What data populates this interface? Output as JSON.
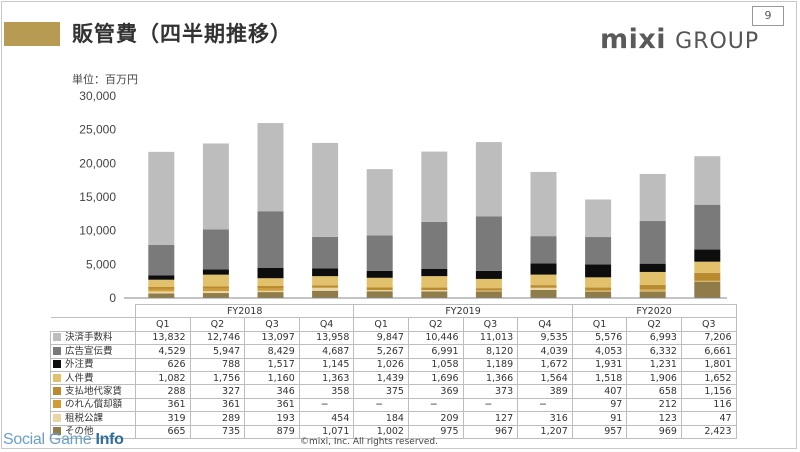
{
  "header": {
    "title": "販管費（四半期推移）",
    "logo_main": "mixi",
    "logo_sub": "GROUP",
    "page_number": "9",
    "unit_label": "単位：百万円"
  },
  "footer": {
    "copyright": "©mixi, Inc. All rights reserved.",
    "watermark_main": "Social Game ",
    "watermark_bold": "Info"
  },
  "chart_data": {
    "type": "bar",
    "stacked": true,
    "years": [
      {
        "label": "FY2018",
        "quarters": [
          "Q1",
          "Q2",
          "Q3",
          "Q4"
        ]
      },
      {
        "label": "FY2019",
        "quarters": [
          "Q1",
          "Q2",
          "Q3",
          "Q4"
        ]
      },
      {
        "label": "FY2020",
        "quarters": [
          "Q1",
          "Q2",
          "Q3"
        ]
      }
    ],
    "categories": [
      "FY2018 Q1",
      "FY2018 Q2",
      "FY2018 Q3",
      "FY2018 Q4",
      "FY2019 Q1",
      "FY2019 Q2",
      "FY2019 Q3",
      "FY2019 Q4",
      "FY2020 Q1",
      "FY2020 Q2",
      "FY2020 Q3"
    ],
    "ylim": [
      0,
      30000
    ],
    "yticks": [
      "0",
      "5,000",
      "10,000",
      "15,000",
      "20,000",
      "25,000",
      "30,000"
    ],
    "ytick_values": [
      0,
      5000,
      10000,
      15000,
      20000,
      25000,
      30000
    ],
    "series": [
      {
        "name": "決済手数料",
        "color": "#bdbdbd",
        "display": [
          "13,832",
          "12,746",
          "13,097",
          "13,958",
          "9,847",
          "10,446",
          "11,013",
          "9,535",
          "5,576",
          "6,993",
          "7,206"
        ],
        "values": [
          13832,
          12746,
          13097,
          13958,
          9847,
          10446,
          11013,
          9535,
          5576,
          6993,
          7206
        ]
      },
      {
        "name": "広告宣伝費",
        "color": "#7a7a7a",
        "display": [
          "4,529",
          "5,947",
          "8,429",
          "4,687",
          "5,267",
          "6,991",
          "8,120",
          "4,039",
          "4,053",
          "6,332",
          "6,661"
        ],
        "values": [
          4529,
          5947,
          8429,
          4687,
          5267,
          6991,
          8120,
          4039,
          4053,
          6332,
          6661
        ]
      },
      {
        "name": "外注費",
        "color": "#0d0d0d",
        "display": [
          "626",
          "788",
          "1,517",
          "1,145",
          "1,026",
          "1,058",
          "1,189",
          "1,672",
          "1,931",
          "1,231",
          "1,801"
        ],
        "values": [
          626,
          788,
          1517,
          1145,
          1026,
          1058,
          1189,
          1672,
          1931,
          1231,
          1801
        ]
      },
      {
        "name": "人件費",
        "color": "#e2c16d",
        "display": [
          "1,082",
          "1,756",
          "1,160",
          "1,363",
          "1,439",
          "1,696",
          "1,366",
          "1,564",
          "1,518",
          "1,906",
          "1,652"
        ],
        "values": [
          1082,
          1756,
          1160,
          1363,
          1439,
          1696,
          1366,
          1564,
          1518,
          1906,
          1652
        ]
      },
      {
        "name": "支払地代家賃",
        "color": "#b98a2e",
        "display": [
          "288",
          "327",
          "346",
          "358",
          "375",
          "369",
          "373",
          "389",
          "407",
          "658",
          "1,156"
        ],
        "values": [
          288,
          327,
          346,
          358,
          375,
          369,
          373,
          389,
          407,
          658,
          1156
        ]
      },
      {
        "name": "のれん償却額",
        "color": "#d09c36",
        "display": [
          "361",
          "361",
          "361",
          "−",
          "−",
          "−",
          "−",
          "−",
          "97",
          "212",
          "116"
        ],
        "values": [
          361,
          361,
          361,
          0,
          0,
          0,
          0,
          0,
          97,
          212,
          116
        ]
      },
      {
        "name": "租税公課",
        "color": "#ead6a4",
        "display": [
          "319",
          "289",
          "193",
          "454",
          "184",
          "209",
          "127",
          "316",
          "91",
          "123",
          "47"
        ],
        "values": [
          319,
          289,
          193,
          454,
          184,
          209,
          127,
          316,
          91,
          123,
          47
        ]
      },
      {
        "name": "その他",
        "color": "#8f7c49",
        "display": [
          "665",
          "735",
          "879",
          "1,071",
          "1,002",
          "975",
          "967",
          "1,207",
          "957",
          "969",
          "2,423"
        ],
        "values": [
          665,
          735,
          879,
          1071,
          1002,
          975,
          967,
          1207,
          957,
          969,
          2423
        ]
      }
    ]
  }
}
